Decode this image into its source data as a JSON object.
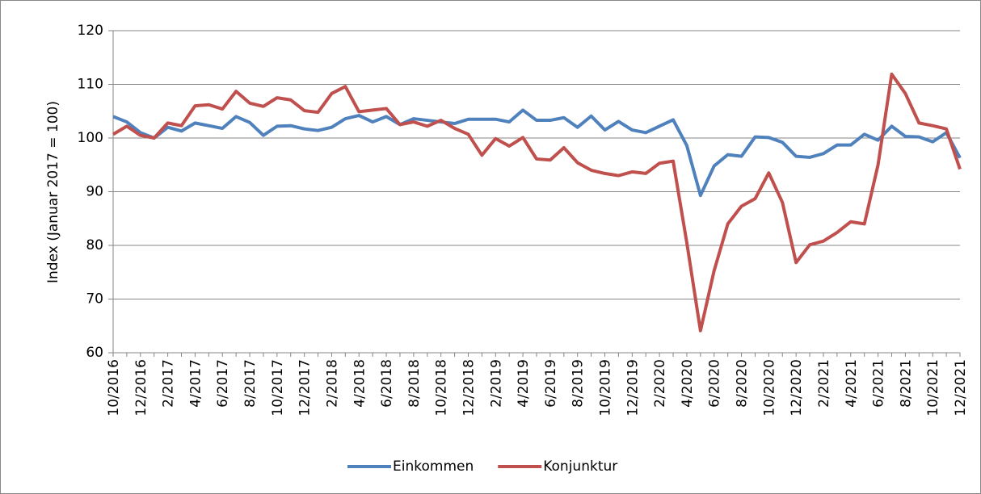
{
  "chart_data": {
    "type": "line",
    "y_label": "Index (Januar 2017 = 100)",
    "categories": [
      "10/2016",
      null,
      "12/2016",
      null,
      "2/2017",
      null,
      "4/2017",
      null,
      "6/2017",
      null,
      "8/2017",
      null,
      "10/2017",
      null,
      "12/2017",
      null,
      "2/2018",
      null,
      "4/2018",
      null,
      "6/2018",
      null,
      "8/2018",
      null,
      "10/2018",
      null,
      "12/2018",
      null,
      "2/2019",
      null,
      "4/2019",
      null,
      "6/2019",
      null,
      "8/2019",
      null,
      "10/2019",
      null,
      "12/2019",
      null,
      "2/2020",
      null,
      "4/2020",
      null,
      "6/2020",
      null,
      "8/2020",
      null,
      "10/2020",
      null,
      "12/2020",
      null,
      "2/2021",
      null,
      "4/2021",
      null,
      "6/2021",
      null,
      "8/2021",
      null,
      "10/2021",
      null,
      "12/2021"
    ],
    "series": [
      {
        "name": "Einkommen",
        "color": "#4f81bd",
        "values": [
          104,
          103,
          101,
          100,
          102,
          101.3,
          102.8,
          102.3,
          101.8,
          104,
          102.9,
          100.5,
          102.2,
          102.3,
          101.7,
          101.4,
          102,
          103.6,
          104.2,
          103,
          104,
          102.5,
          103.6,
          103.3,
          103,
          102.7,
          103.5,
          103.5,
          103.5,
          103,
          105.2,
          103.3,
          103.3,
          103.8,
          102,
          104.1,
          101.5,
          103.1,
          101.5,
          101,
          102.2,
          103.4,
          98.6,
          89.3,
          94.8,
          96.9,
          96.6,
          100.2,
          100.1,
          99.2,
          96.6,
          96.4,
          97.1,
          98.7,
          98.7,
          100.7,
          99.6,
          102.2,
          100.3,
          100.2,
          99.3,
          101,
          96.3
        ]
      },
      {
        "name": "Konjunktur",
        "color": "#c0504d",
        "values": [
          100.7,
          102.2,
          100.5,
          100,
          102.8,
          102.3,
          106,
          106.2,
          105.4,
          108.7,
          106.5,
          105.9,
          107.5,
          107.1,
          105.1,
          104.8,
          108.3,
          109.6,
          104.9,
          105.2,
          105.5,
          102.5,
          103,
          102.2,
          103.3,
          101.8,
          100.7,
          96.8,
          99.9,
          98.5,
          100.1,
          96.1,
          95.9,
          98.2,
          95.4,
          94,
          93.4,
          93,
          93.7,
          93.4,
          95.3,
          95.7,
          80.5,
          64.1,
          75.3,
          84,
          87.3,
          88.7,
          93.5,
          88,
          76.8,
          80.1,
          80.8,
          82.4,
          84.4,
          84,
          95,
          111.9,
          108.3,
          102.8,
          102.3,
          101.7,
          94.2
        ]
      }
    ],
    "ylim": [
      60,
      120
    ],
    "yticks": [
      60,
      70,
      80,
      90,
      100,
      110,
      120
    ],
    "grid": true,
    "legend": "bottom"
  }
}
